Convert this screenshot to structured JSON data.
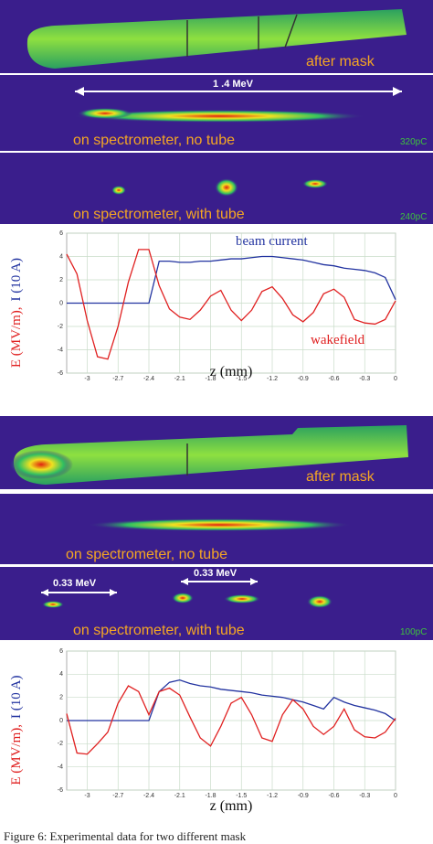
{
  "panels": [
    {
      "label": "after mask"
    },
    {
      "label": "on spectrometer, no tube",
      "scale": "1 .4 MeV",
      "charge": "320pC"
    },
    {
      "label": "on spectrometer, with tube",
      "charge": "240pC"
    },
    {
      "label": "after mask"
    },
    {
      "label": "on spectrometer, no tube"
    },
    {
      "label": "on spectrometer, with tube",
      "annotations": [
        "0.33 MeV",
        "0.33 MeV"
      ],
      "charge": "100pC"
    }
  ],
  "chart_data": [
    {
      "type": "line",
      "xlabel": "z (mm)",
      "ylabel": [
        "E (MV/m),",
        "I (10 A)"
      ],
      "annotations": [
        "beam current",
        "wakefield"
      ],
      "x": [
        -3.2,
        -3.1,
        -3.0,
        -2.9,
        -2.8,
        -2.7,
        -2.6,
        -2.5,
        -2.4,
        -2.3,
        -2.2,
        -2.1,
        -2.0,
        -1.9,
        -1.8,
        -1.7,
        -1.6,
        -1.5,
        -1.4,
        -1.3,
        -1.2,
        -1.1,
        -1.0,
        -0.9,
        -0.8,
        -0.7,
        -0.6,
        -0.5,
        -0.4,
        -0.3,
        -0.2,
        -0.1,
        0
      ],
      "series": [
        {
          "name": "beam current",
          "color": "#2233a0",
          "values": [
            0,
            0,
            0,
            0,
            0,
            0,
            0,
            0,
            0,
            3.6,
            3.6,
            3.5,
            3.5,
            3.6,
            3.6,
            3.7,
            3.8,
            3.8,
            3.9,
            4.0,
            4.0,
            3.9,
            3.8,
            3.7,
            3.5,
            3.3,
            3.2,
            3.0,
            2.9,
            2.8,
            2.6,
            2.2,
            0.3
          ]
        },
        {
          "name": "wakefield",
          "color": "#e02020",
          "values": [
            4.2,
            2.5,
            -1.5,
            -4.6,
            -4.8,
            -2,
            1.8,
            4.6,
            4.6,
            1.5,
            -0.5,
            -1.2,
            -1.4,
            -0.6,
            0.6,
            1.1,
            -0.6,
            -1.5,
            -0.6,
            1.0,
            1.4,
            0.4,
            -1.0,
            -1.6,
            -0.8,
            0.8,
            1.2,
            0.5,
            -1.4,
            -1.7,
            -1.8,
            -1.4,
            0.2
          ]
        }
      ],
      "xlim": [
        -3.2,
        0
      ],
      "xticks": [
        -3,
        -2.7,
        -2.4,
        -2.1,
        -1.8,
        -1.5,
        -1.2,
        -0.9,
        -0.6,
        -0.3,
        0
      ],
      "ylim": [
        -6,
        6
      ],
      "yticks": [
        -6,
        -4,
        -2,
        0,
        2,
        4,
        6
      ],
      "grid": true
    },
    {
      "type": "line",
      "xlabel": "z (mm)",
      "ylabel": [
        "E (MV/m),",
        "I (10 A)"
      ],
      "x": [
        -3.2,
        -3.1,
        -3.0,
        -2.9,
        -2.8,
        -2.7,
        -2.6,
        -2.5,
        -2.4,
        -2.3,
        -2.2,
        -2.1,
        -2.0,
        -1.9,
        -1.8,
        -1.7,
        -1.6,
        -1.5,
        -1.4,
        -1.3,
        -1.2,
        -1.1,
        -1.0,
        -0.9,
        -0.8,
        -0.7,
        -0.6,
        -0.5,
        -0.4,
        -0.3,
        -0.2,
        -0.1,
        0
      ],
      "series": [
        {
          "name": "beam current",
          "color": "#2233a0",
          "values": [
            0,
            0,
            0,
            0,
            0,
            0,
            0,
            0,
            0,
            2.5,
            3.3,
            3.5,
            3.2,
            3.0,
            2.9,
            2.7,
            2.6,
            2.5,
            2.4,
            2.2,
            2.1,
            2.0,
            1.8,
            1.6,
            1.3,
            1.0,
            2.0,
            1.6,
            1.3,
            1.1,
            0.9,
            0.6,
            0.0
          ]
        },
        {
          "name": "wakefield",
          "color": "#e02020",
          "values": [
            0.6,
            -2.8,
            -2.9,
            -2,
            -1,
            1.5,
            3.0,
            2.5,
            0.5,
            2.5,
            2.8,
            2.2,
            0.3,
            -1.5,
            -2.2,
            -0.5,
            1.5,
            2.0,
            0.5,
            -1.5,
            -1.8,
            0.5,
            1.8,
            1.0,
            -0.5,
            -1.2,
            -0.5,
            1.0,
            -0.8,
            -1.4,
            -1.5,
            -1.0,
            0.2
          ]
        }
      ],
      "xlim": [
        -3.2,
        0
      ],
      "xticks": [
        -3,
        -2.7,
        -2.4,
        -2.1,
        -1.8,
        -1.5,
        -1.2,
        -0.9,
        -0.6,
        -0.3,
        0
      ],
      "ylim": [
        -6,
        6
      ],
      "yticks": [
        -6,
        -4,
        -2,
        0,
        2,
        4,
        6
      ],
      "grid": true
    }
  ],
  "caption": "Figure 6: Experimental data for two different mask"
}
